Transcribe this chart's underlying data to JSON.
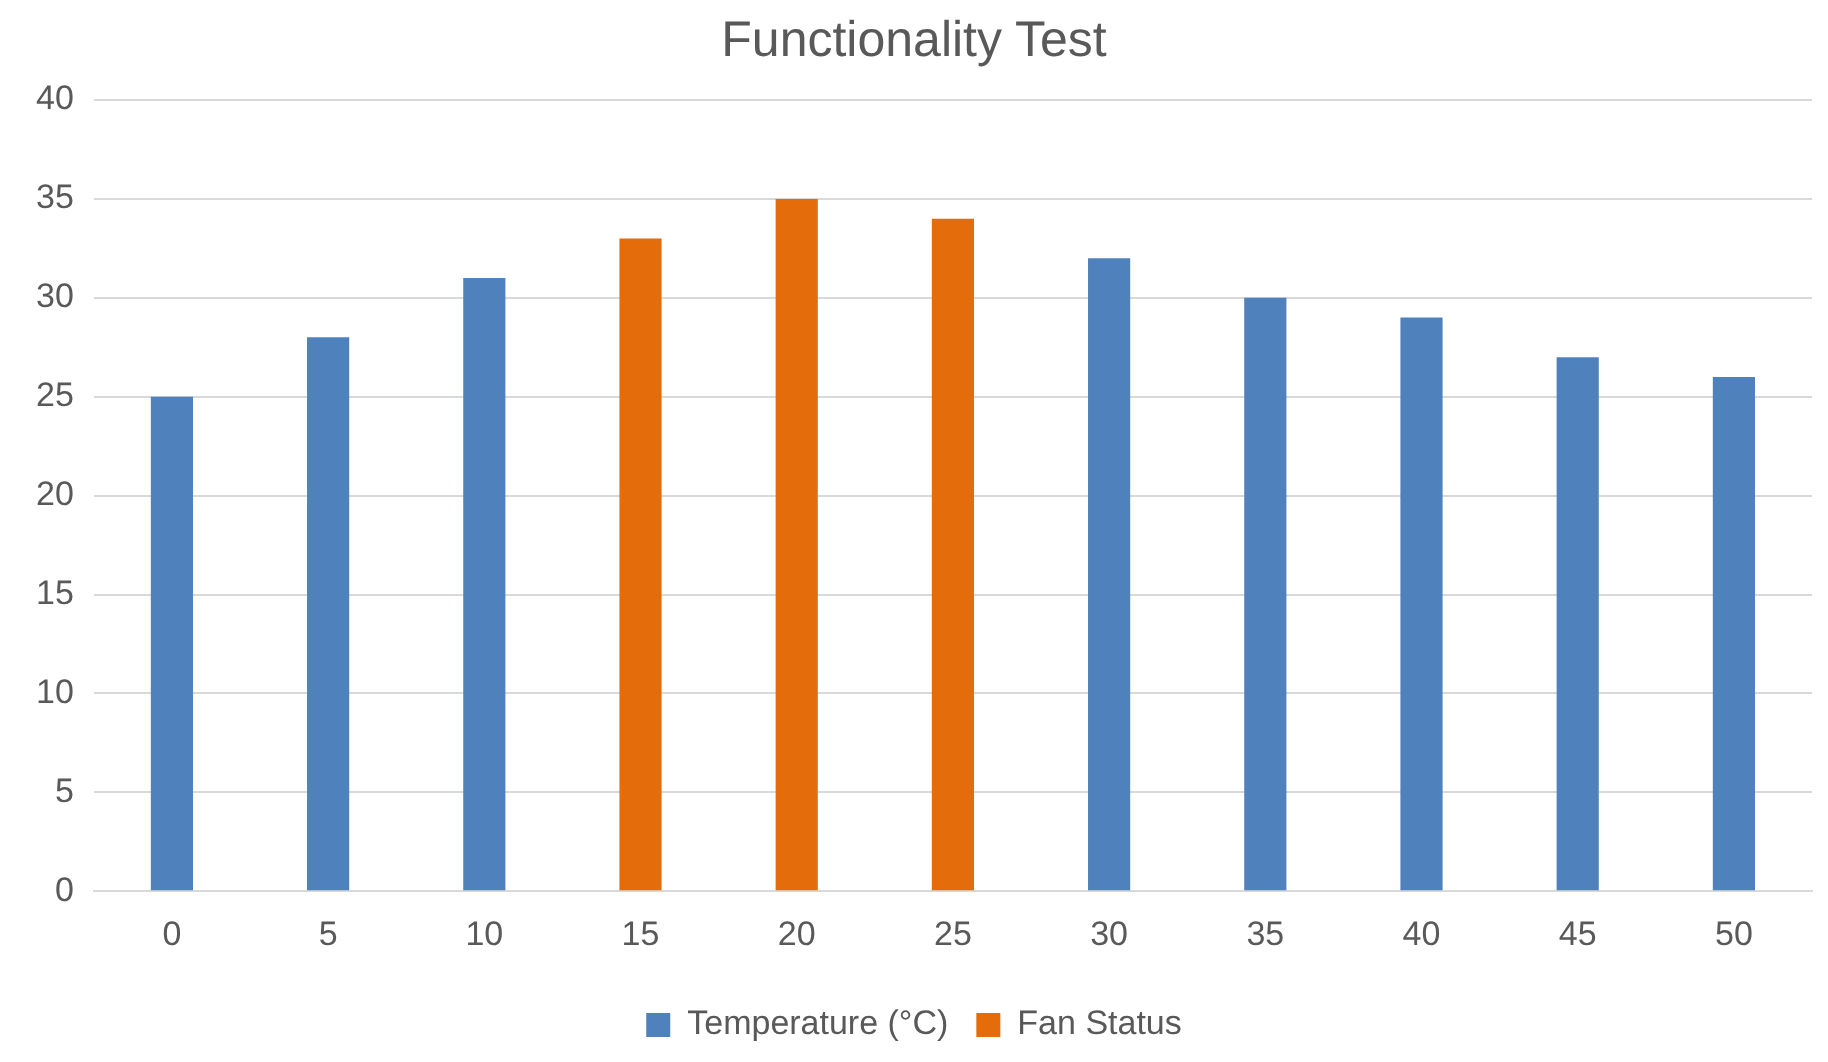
{
  "chart_data": {
    "type": "bar",
    "title": "Functionality Test",
    "categories": [
      "0",
      "5",
      "10",
      "15",
      "20",
      "25",
      "30",
      "35",
      "40",
      "45",
      "50"
    ],
    "series": [
      {
        "name": "Temperature (°C)",
        "color": "#4f81bd",
        "values": [
          25,
          28,
          31,
          null,
          null,
          null,
          32,
          30,
          29,
          27,
          26
        ]
      },
      {
        "name": "Fan Status",
        "color": "#e46c0a",
        "values": [
          null,
          null,
          null,
          33,
          35,
          34,
          null,
          null,
          null,
          null,
          null
        ]
      }
    ],
    "stacked": true,
    "ylim": [
      0,
      40
    ],
    "yticks": [
      0,
      5,
      10,
      15,
      20,
      25,
      30,
      35,
      40
    ],
    "grid": "y",
    "legend": "bottom"
  }
}
